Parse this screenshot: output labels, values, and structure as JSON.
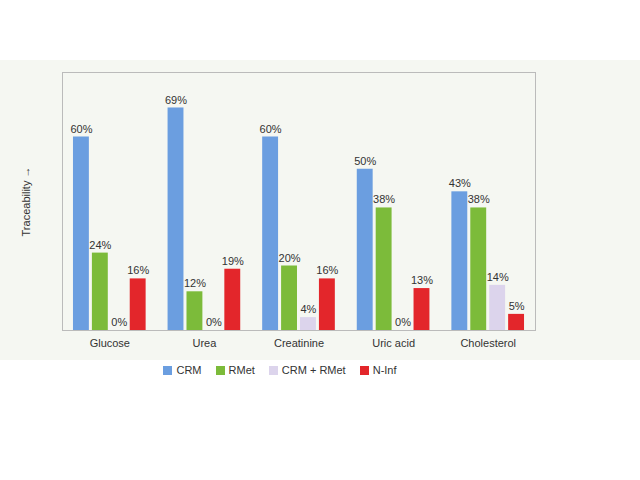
{
  "chart_data": {
    "type": "bar",
    "y_label": "Traceability",
    "categories": [
      "Glucose",
      "Urea",
      "Creatinine",
      "Uric acid",
      "Cholesterol"
    ],
    "series": [
      {
        "name": "CRM",
        "color": "#6b9ee0",
        "values": [
          60,
          69,
          60,
          50,
          43
        ],
        "value_labels": [
          "60%",
          "69%",
          "60%",
          "50%",
          "43%"
        ]
      },
      {
        "name": "RMet",
        "color": "#7cbb3a",
        "values": [
          24,
          12,
          20,
          38,
          38
        ],
        "value_labels": [
          "24%",
          "12%",
          "20%",
          "38%",
          "38%"
        ]
      },
      {
        "name": "CRM + RMet",
        "color": "#dcd4ec",
        "values": [
          0,
          0,
          4,
          0,
          14
        ],
        "value_labels": [
          "0%",
          "0%",
          "4%",
          "0%",
          "14%"
        ]
      },
      {
        "name": "N-Inf",
        "color": "#e3262b",
        "values": [
          16,
          19,
          16,
          13,
          5
        ],
        "value_labels": [
          "16%",
          "19%",
          "16%",
          "13%",
          "5%"
        ]
      }
    ],
    "ylim": [
      0,
      80
    ],
    "yticks": [],
    "tick_labels": "x",
    "data_labels": true,
    "legend": "bottom"
  }
}
